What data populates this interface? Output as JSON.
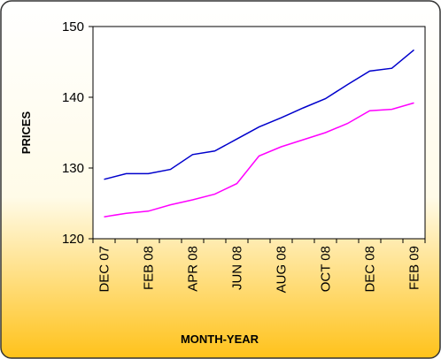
{
  "chart_data": {
    "type": "line",
    "x_label": "MONTH-YEAR",
    "y_label": "PRICES",
    "categories": [
      "DEC  07",
      null,
      "FEB  08",
      null,
      "APR  08",
      null,
      "JUN  08",
      null,
      "AUG  08",
      null,
      "OCT  08",
      null,
      "DEC  08",
      null,
      "FEB  09"
    ],
    "series": [
      {
        "color": "#0000cc",
        "values": [
          128.4,
          129.2,
          129.2,
          129.8,
          131.9,
          132.4,
          134.1,
          135.8,
          137.1,
          138.5,
          139.8,
          141.8,
          143.7,
          144.1,
          146.7
        ]
      },
      {
        "color": "#ff00ff",
        "values": [
          123.1,
          123.6,
          123.9,
          124.8,
          125.5,
          126.3,
          127.8,
          131.7,
          133.0,
          134.0,
          135.0,
          136.3,
          138.1,
          138.3,
          139.2
        ]
      }
    ],
    "ylim": [
      120,
      150
    ],
    "yticks": [
      120,
      130,
      140,
      150
    ],
    "grid": false
  }
}
